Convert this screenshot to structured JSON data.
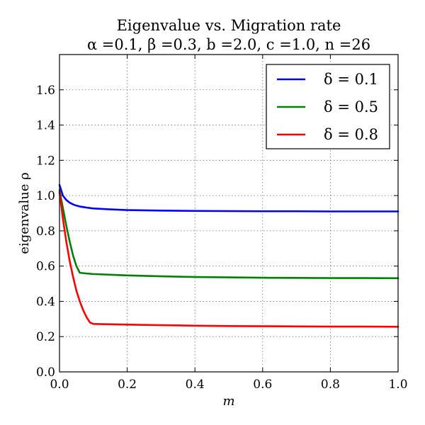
{
  "chart_data": {
    "type": "line",
    "title": "Eigenvalue vs. Migration rate",
    "subtitle": "α =0.1, β =0.3, b =2.0, c =1.0, n =26",
    "xlabel": "m",
    "ylabel": "eigenvalue ρ",
    "xlim": [
      0.0,
      1.0
    ],
    "ylim": [
      0.0,
      1.8
    ],
    "xticks": [
      "0.0",
      "0.2",
      "0.4",
      "0.6",
      "0.8",
      "1.0"
    ],
    "yticks": [
      "0.0",
      "0.2",
      "0.4",
      "0.6",
      "0.8",
      "1.0",
      "1.2",
      "1.4",
      "1.6"
    ],
    "grid": true,
    "legend_position": "top-right",
    "series": [
      {
        "name": "δ = 0.1",
        "color": "#0000ff",
        "x": [
          0.0,
          0.01,
          0.02,
          0.03,
          0.04,
          0.05,
          0.06,
          0.08,
          0.1,
          0.15,
          0.2,
          0.3,
          0.4,
          0.5,
          0.6,
          0.7,
          0.8,
          0.9,
          1.0
        ],
        "y": [
          1.06,
          1.0,
          0.975,
          0.96,
          0.95,
          0.943,
          0.938,
          0.932,
          0.927,
          0.922,
          0.918,
          0.915,
          0.913,
          0.912,
          0.911,
          0.911,
          0.91,
          0.91,
          0.91
        ]
      },
      {
        "name": "δ = 0.5",
        "color": "#008000",
        "x": [
          0.0,
          0.01,
          0.02,
          0.03,
          0.04,
          0.05,
          0.06,
          0.08,
          0.1,
          0.2,
          0.3,
          0.4,
          0.5,
          0.6,
          0.7,
          0.8,
          0.9,
          1.0
        ],
        "y": [
          1.03,
          0.93,
          0.83,
          0.74,
          0.66,
          0.6,
          0.562,
          0.558,
          0.555,
          0.547,
          0.542,
          0.538,
          0.536,
          0.534,
          0.533,
          0.532,
          0.532,
          0.531
        ]
      },
      {
        "name": "δ = 0.8",
        "color": "#ff0000",
        "x": [
          0.0,
          0.01,
          0.02,
          0.03,
          0.04,
          0.05,
          0.06,
          0.07,
          0.08,
          0.09,
          0.1,
          0.15,
          0.2,
          0.3,
          0.4,
          0.5,
          0.6,
          0.7,
          0.8,
          0.9,
          1.0
        ],
        "y": [
          1.02,
          0.87,
          0.74,
          0.63,
          0.54,
          0.46,
          0.4,
          0.35,
          0.31,
          0.28,
          0.272,
          0.27,
          0.268,
          0.265,
          0.262,
          0.26,
          0.259,
          0.258,
          0.257,
          0.257,
          0.256
        ]
      }
    ]
  }
}
